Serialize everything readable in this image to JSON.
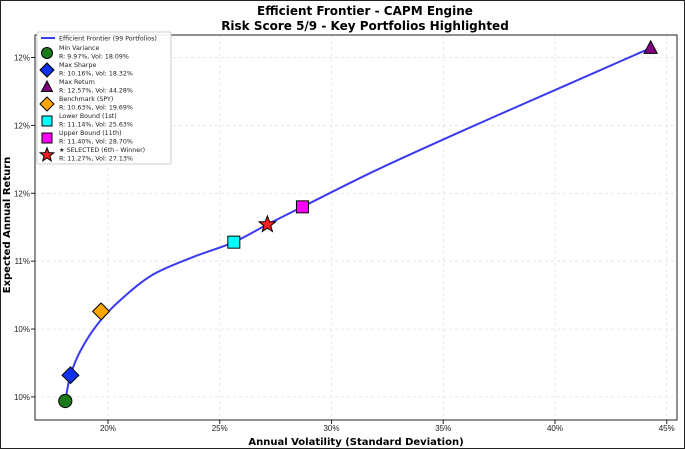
{
  "chart_data": {
    "type": "line",
    "title": "Efficient Frontier - CAPM Engine",
    "subtitle": "Risk Score 5/9 - Key Portfolios Highlighted",
    "xlabel": "Annual Volatility (Standard Deviation)",
    "ylabel": "Expected Annual Return",
    "xlim": [
      17.0,
      45.5
    ],
    "ylim": [
      9.88,
      12.67
    ],
    "xticks": [
      20,
      25,
      30,
      35,
      40,
      45
    ],
    "xtick_labels": [
      "20%",
      "25%",
      "30%",
      "35%",
      "40%",
      "45%"
    ],
    "yticks": [
      10.0,
      10.5,
      11.0,
      11.5,
      12.0,
      12.5
    ],
    "ytick_labels": [
      "10%",
      "10%",
      "11%",
      "12%",
      "12%",
      "12%"
    ],
    "grid": true,
    "legend_position": "top-left",
    "frontier": {
      "name": "Efficient Frontier (99 Portfolios)",
      "color": "#3a3af0",
      "x": [
        18.09,
        18.32,
        18.8,
        19.6,
        20.6,
        22.0,
        23.8,
        25.63,
        27.13,
        28.7,
        32.0,
        36.0,
        40.0,
        44.28
      ],
      "y": [
        9.97,
        10.16,
        10.35,
        10.55,
        10.72,
        10.9,
        11.03,
        11.14,
        11.27,
        11.4,
        11.67,
        11.97,
        12.26,
        12.57
      ]
    },
    "points": [
      {
        "name": "Min Variance",
        "detail": "R: 9.97%, Vol: 18.09%",
        "x": 18.09,
        "y": 9.97,
        "marker": "circle",
        "color": "#1a7a1a"
      },
      {
        "name": "Max Sharpe",
        "detail": "R: 10.16%, Vol: 18.32%",
        "x": 18.32,
        "y": 10.16,
        "marker": "diamond",
        "color": "#1030f0"
      },
      {
        "name": "Max Return",
        "detail": "R: 12.57%, Vol: 44.28%",
        "x": 44.28,
        "y": 12.57,
        "marker": "triangle",
        "color": "#800080"
      },
      {
        "name": "Benchmark (SPY)",
        "detail": "R: 10.63%, Vol: 19.69%",
        "x": 19.69,
        "y": 10.63,
        "marker": "diamond",
        "color": "#ffa500"
      },
      {
        "name": "Lower Bound (1st)",
        "detail": "R: 11.14%, Vol: 25.63%",
        "x": 25.63,
        "y": 11.14,
        "marker": "square",
        "color": "#00ffff"
      },
      {
        "name": "Upper Bound (11th)",
        "detail": "R: 11.40%, Vol: 28.70%",
        "x": 28.7,
        "y": 11.4,
        "marker": "square",
        "color": "#ff00ff"
      },
      {
        "name": "★ SELECTED (6th - Winner)",
        "detail": "R: 11.27%, Vol: 27.13%",
        "x": 27.13,
        "y": 11.27,
        "marker": "star",
        "color": "#ff2020"
      }
    ]
  }
}
